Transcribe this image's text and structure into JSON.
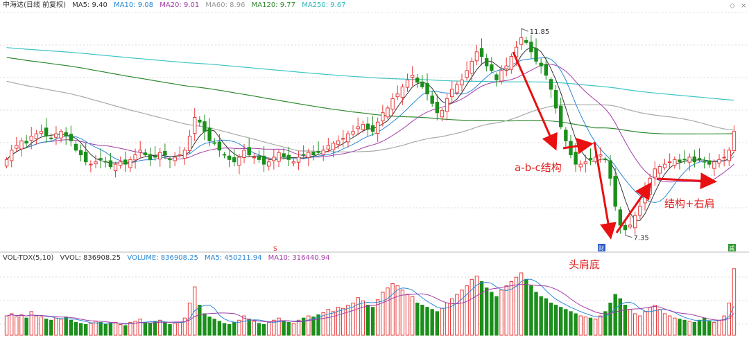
{
  "header": {
    "title": "中海达(日线 前复权)",
    "ma5": "MA5: 9.40",
    "ma10": "MA10: 9.08",
    "ma20": "MA20: 9.01",
    "ma60": "MA60: 8.96",
    "ma120": "MA120: 9.77",
    "ma250": "MA250: 9.67"
  },
  "vol_header": {
    "name": "VOL-TDX(5,10)",
    "vvol": "VVOL: 836908.25",
    "volume": "VOLUME: 836908.25",
    "ma5": "MA5: 450211.94",
    "ma10": "MA10: 316440.94"
  },
  "toolbar": {
    "diamond_icon": "◇",
    "close_icon": "×"
  },
  "annotations": {
    "high_label": "11.85",
    "low_label": "7.35",
    "abc": "a-b-c结构",
    "structure_right_shoulder": "结构+右肩",
    "head_shoulders_bottom": "头肩底",
    "marker_s": "S",
    "marker_cai": "财",
    "marker_yan": "减"
  },
  "colors": {
    "up": "#e83a3a",
    "down": "#1b8f1b",
    "ma5": "#333333",
    "ma10": "#2a87d6",
    "ma20": "#a23aa8",
    "ma60": "#a8a8a8",
    "ma120": "#2f8a2f",
    "ma250": "#3fc4c4",
    "arrow": "#e81010"
  },
  "chart_data": {
    "type": "candlestick",
    "title": "中海达(日线 前复权)",
    "price_high": 11.85,
    "price_low": 7.35,
    "price_range_shown": [
      7.2,
      12.2
    ],
    "latest_ma": {
      "MA5": 9.4,
      "MA10": 9.08,
      "MA20": 9.01,
      "MA60": 8.96,
      "MA120": 9.77,
      "MA250": 9.67
    },
    "latest_volume": {
      "VOLUME": 836908.25,
      "MA5": 450211.94,
      "MA10": 316440.94
    },
    "close": [
      9.0,
      9.2,
      9.3,
      9.4,
      9.35,
      9.5,
      9.55,
      9.6,
      9.5,
      9.45,
      9.55,
      9.6,
      9.5,
      9.4,
      9.2,
      9.1,
      8.95,
      8.9,
      8.95,
      9.0,
      8.95,
      8.85,
      8.9,
      8.95,
      8.9,
      9.0,
      9.1,
      9.2,
      9.1,
      9.0,
      9.05,
      9.15,
      9.1,
      9.0,
      9.05,
      9.1,
      9.2,
      9.5,
      9.9,
      9.8,
      9.6,
      9.4,
      9.35,
      9.2,
      9.1,
      9.0,
      8.95,
      9.05,
      9.2,
      9.1,
      9.05,
      9.0,
      8.9,
      8.95,
      9.05,
      9.15,
      9.05,
      9.0,
      8.95,
      9.05,
      9.1,
      9.15,
      9.1,
      9.15,
      9.2,
      9.3,
      9.35,
      9.4,
      9.45,
      9.55,
      9.6,
      9.7,
      9.75,
      9.65,
      9.6,
      9.8,
      10.0,
      10.1,
      10.3,
      10.4,
      10.55,
      10.7,
      10.8,
      10.65,
      10.55,
      10.4,
      10.2,
      10.0,
      10.05,
      10.3,
      10.5,
      10.6,
      10.7,
      10.9,
      11.1,
      11.3,
      11.2,
      11.0,
      10.9,
      10.7,
      10.9,
      11.0,
      11.2,
      11.4,
      11.6,
      11.5,
      11.3,
      11.1,
      11.0,
      10.8,
      10.5,
      10.1,
      9.7,
      9.4,
      9.1,
      8.9,
      8.9,
      8.95,
      9.0,
      9.05,
      9.1,
      9.0,
      8.6,
      8.0,
      7.6,
      7.5,
      7.6,
      7.8,
      8.0,
      8.3,
      8.6,
      8.8,
      8.85,
      8.9,
      8.95,
      9.0,
      8.95,
      9.0,
      9.05,
      8.95,
      9.0,
      8.95,
      8.9,
      8.95,
      9.0,
      9.05,
      9.2,
      9.6
    ],
    "volume": [
      18,
      20,
      17,
      19,
      16,
      22,
      18,
      17,
      15,
      14,
      16,
      15,
      17,
      14,
      12,
      11,
      10,
      11,
      13,
      12,
      10,
      11,
      12,
      10,
      9,
      12,
      13,
      15,
      12,
      11,
      13,
      14,
      12,
      10,
      11,
      12,
      16,
      30,
      45,
      28,
      20,
      17,
      15,
      13,
      11,
      10,
      12,
      14,
      18,
      15,
      13,
      11,
      10,
      12,
      14,
      16,
      13,
      12,
      11,
      14,
      16,
      18,
      17,
      19,
      21,
      24,
      22,
      26,
      25,
      28,
      30,
      35,
      32,
      28,
      26,
      33,
      40,
      44,
      48,
      46,
      42,
      38,
      36,
      30,
      28,
      26,
      24,
      22,
      25,
      30,
      34,
      38,
      42,
      46,
      52,
      55,
      50,
      44,
      40,
      36,
      42,
      46,
      50,
      54,
      58,
      52,
      46,
      40,
      36,
      34,
      30,
      28,
      26,
      24,
      22,
      20,
      18,
      17,
      16,
      15,
      18,
      22,
      30,
      38,
      34,
      28,
      24,
      20,
      18,
      22,
      26,
      28,
      24,
      20,
      18,
      16,
      15,
      14,
      13,
      12,
      14,
      16,
      13,
      12,
      14,
      18,
      30,
      62
    ]
  }
}
